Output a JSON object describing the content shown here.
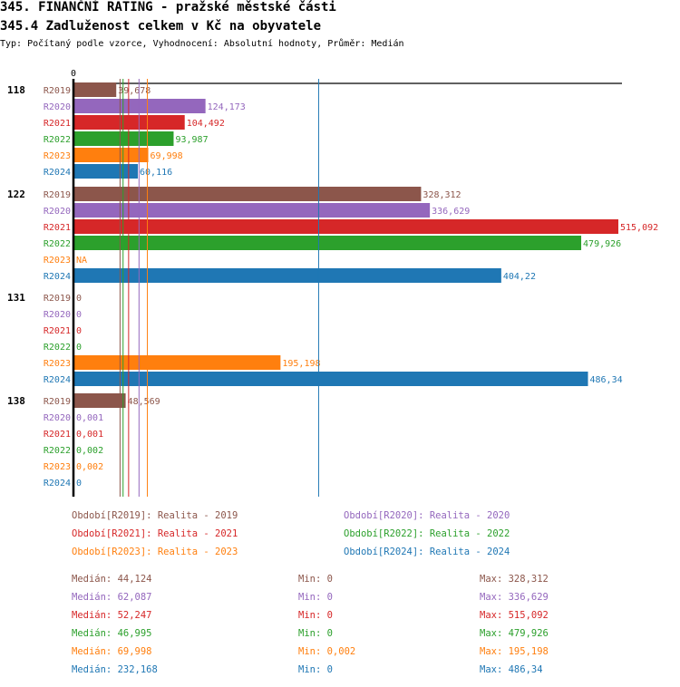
{
  "header": {
    "title": "345. FINANČNÍ RATING - pražské městské části",
    "subtitle": "345.4 Zadluženost celkem v Kč na obyvatele",
    "description": "Typ: Počítaný podle vzorce, Vyhodnocení: Absolutní hodnoty, Průměr: Medián"
  },
  "chart_data": {
    "type": "bar",
    "orientation": "horizontal",
    "title": "345.4 Zadluženost celkem v Kč na obyvatele",
    "xaxis_zero_label": "0",
    "xlim": [
      0,
      515.092
    ],
    "series_keys": [
      "R2019",
      "R2020",
      "R2021",
      "R2022",
      "R2023",
      "R2024"
    ],
    "colors": {
      "R2019": "#8c564b",
      "R2020": "#9467bd",
      "R2021": "#d62728",
      "R2022": "#2ca02c",
      "R2023": "#ff7f0e",
      "R2024": "#1f77b4"
    },
    "groups": [
      {
        "name": "118",
        "rows": [
          {
            "series": "R2019",
            "value": 39.678,
            "label": "39,678"
          },
          {
            "series": "R2020",
            "value": 124.173,
            "label": "124,173"
          },
          {
            "series": "R2021",
            "value": 104.492,
            "label": "104,492"
          },
          {
            "series": "R2022",
            "value": 93.987,
            "label": "93,987"
          },
          {
            "series": "R2023",
            "value": 69.998,
            "label": "69,998"
          },
          {
            "series": "R2024",
            "value": 60.116,
            "label": "60,116"
          }
        ]
      },
      {
        "name": "122",
        "rows": [
          {
            "series": "R2019",
            "value": 328.312,
            "label": "328,312"
          },
          {
            "series": "R2020",
            "value": 336.629,
            "label": "336,629"
          },
          {
            "series": "R2021",
            "value": 515.092,
            "label": "515,092"
          },
          {
            "series": "R2022",
            "value": 479.926,
            "label": "479,926"
          },
          {
            "series": "R2023",
            "value": null,
            "label": "NA"
          },
          {
            "series": "R2024",
            "value": 404.22,
            "label": "404,22"
          }
        ]
      },
      {
        "name": "131",
        "rows": [
          {
            "series": "R2019",
            "value": 0,
            "label": "0"
          },
          {
            "series": "R2020",
            "value": 0,
            "label": "0"
          },
          {
            "series": "R2021",
            "value": 0,
            "label": "0"
          },
          {
            "series": "R2022",
            "value": 0,
            "label": "0"
          },
          {
            "series": "R2023",
            "value": 195.198,
            "label": "195,198"
          },
          {
            "series": "R2024",
            "value": 486.34,
            "label": "486,34"
          }
        ]
      },
      {
        "name": "138",
        "rows": [
          {
            "series": "R2019",
            "value": 48.569,
            "label": "48,569"
          },
          {
            "series": "R2020",
            "value": 0.001,
            "label": "0,001"
          },
          {
            "series": "R2021",
            "value": 0.001,
            "label": "0,001"
          },
          {
            "series": "R2022",
            "value": 0.002,
            "label": "0,002"
          },
          {
            "series": "R2023",
            "value": 0.002,
            "label": "0,002"
          },
          {
            "series": "R2024",
            "value": 0,
            "label": "0"
          }
        ]
      }
    ],
    "medians": {
      "R2019": 44.124,
      "R2020": 62.087,
      "R2021": 52.247,
      "R2022": 46.995,
      "R2023": 69.998,
      "R2024": 232.168
    },
    "legend": [
      {
        "series": "R2019",
        "label": "Období[R2019]: Realita - 2019"
      },
      {
        "series": "R2020",
        "label": "Období[R2020]: Realita - 2020"
      },
      {
        "series": "R2021",
        "label": "Období[R2021]: Realita - 2021"
      },
      {
        "series": "R2022",
        "label": "Období[R2022]: Realita - 2022"
      },
      {
        "series": "R2023",
        "label": "Období[R2023]: Realita - 2023"
      },
      {
        "series": "R2024",
        "label": "Období[R2024]: Realita - 2024"
      }
    ],
    "stats": [
      {
        "series": "R2019",
        "median": "Medián: 44,124",
        "min": "Min: 0",
        "max": "Max: 328,312"
      },
      {
        "series": "R2020",
        "median": "Medián: 62,087",
        "min": "Min: 0",
        "max": "Max: 336,629"
      },
      {
        "series": "R2021",
        "median": "Medián: 52,247",
        "min": "Min: 0",
        "max": "Max: 515,092"
      },
      {
        "series": "R2022",
        "median": "Medián: 46,995",
        "min": "Min: 0",
        "max": "Max: 479,926"
      },
      {
        "series": "R2023",
        "median": "Medián: 69,998",
        "min": "Min: 0,002",
        "max": "Max: 195,198"
      },
      {
        "series": "R2024",
        "median": "Medián: 232,168",
        "min": "Min: 0",
        "max": "Max: 486,34"
      }
    ]
  }
}
